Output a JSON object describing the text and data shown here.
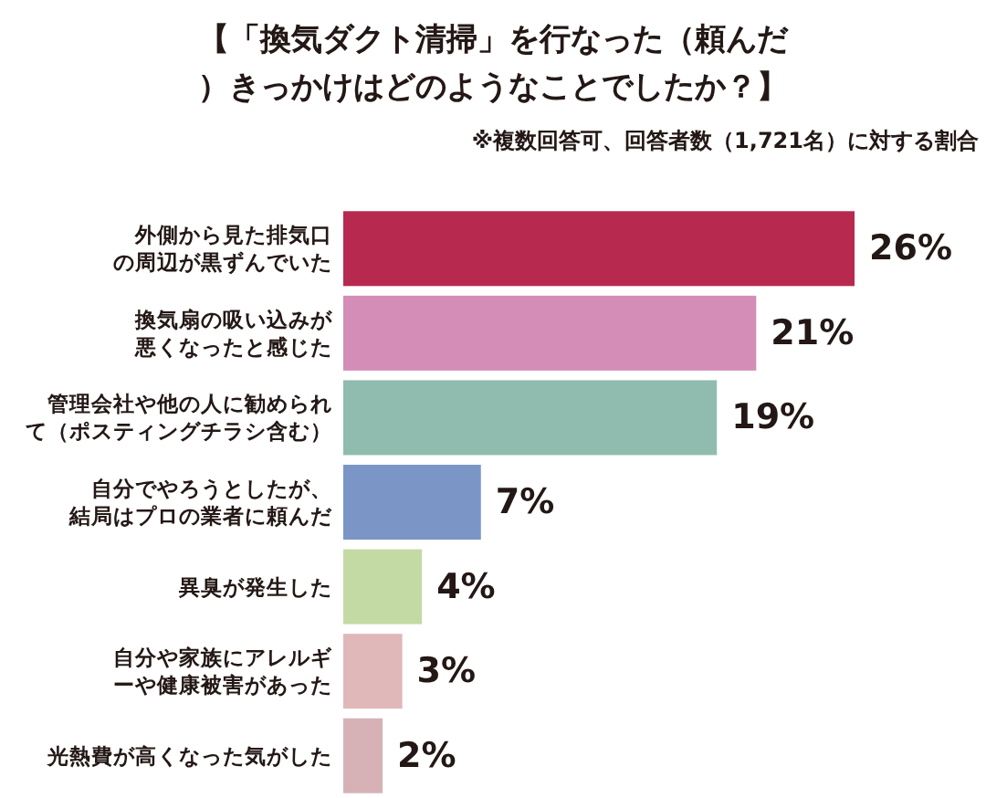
{
  "chart_data": {
    "type": "bar",
    "orientation": "horizontal",
    "title": "【「換気ダクト清掃」を行なった（頼んだ）きっかけはどのようなことでしたか？】",
    "subtitle": "※複数回答可、回答者数（1,721名）に対する割合",
    "categories": [
      "外側から見た排気口の周辺が黒ずんでいた",
      "換気扇の吸い込みが悪くなったと感じた",
      "管理会社や他の人に勧められて（ポスティングチラシ含む）",
      "自分でやろうとしたが、結局はプロの業者に頼んだ",
      "異臭が発生した",
      "自分や家族にアレルギーや健康被害があった",
      "光熱費が高くなった気がした"
    ],
    "values": [
      26,
      21,
      19,
      7,
      4,
      3,
      2
    ],
    "colors": [
      "#b8294f",
      "#d48db7",
      "#8fbcae",
      "#7b96c6",
      "#c3daa5",
      "#e0b8ba",
      "#d6b2b6"
    ],
    "value_labels": [
      "26%",
      "21%",
      "19%",
      "7%",
      "4%",
      "3%",
      "2%"
    ]
  }
}
